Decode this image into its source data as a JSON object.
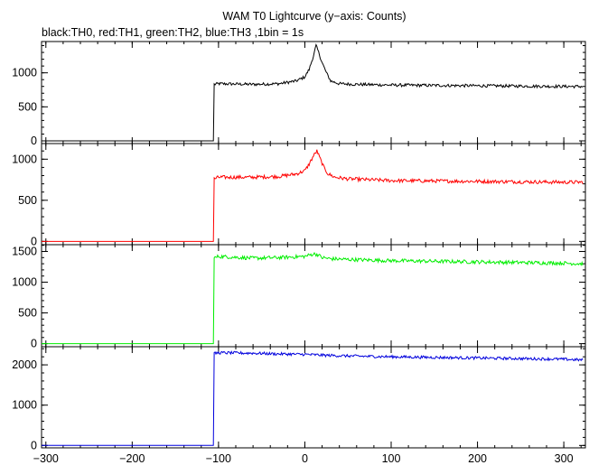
{
  "title": "WAM T0 Lightcurve (y−axis: Counts)",
  "subtitle": "black:TH0, red:TH1, green:TH2, blue:TH3 ,1bin = 1s",
  "chart_data": {
    "type": "line",
    "title": "WAM T0 Lightcurve (y−axis: Counts)",
    "subtitle": "black:TH0, red:TH1, green:TH2, blue:TH3 ,1bin = 1s",
    "xlim": [
      -305,
      325
    ],
    "x_ticks": [
      -300,
      -200,
      -100,
      0,
      100,
      200,
      300
    ],
    "x_tick_labels": [
      "−300",
      "−200",
      "−100",
      "0",
      "100",
      "200",
      "300"
    ],
    "step_time": -105,
    "panels": [
      {
        "name": "TH0",
        "color": "#000000",
        "ylim": [
          -40,
          1460
        ],
        "y_ticks": [
          0,
          500,
          1000
        ],
        "y_tick_labels": [
          "0",
          "500",
          "1000"
        ],
        "x": [
          -305,
          -105.5,
          -105,
          -100,
          -60,
          -30,
          -10,
          0,
          5,
          10,
          13,
          16,
          20,
          25,
          30,
          40,
          60,
          100,
          200,
          300,
          322
        ],
        "y": [
          0,
          0,
          830,
          840,
          830,
          840,
          880,
          940,
          1050,
          1250,
          1400,
          1300,
          1150,
          1000,
          880,
          840,
          830,
          820,
          810,
          800,
          800
        ],
        "noise": 22
      },
      {
        "name": "TH1",
        "color": "#ff0000",
        "ylim": [
          -40,
          1190
        ],
        "y_ticks": [
          0,
          500,
          1000
        ],
        "y_tick_labels": [
          "0",
          "500",
          "1000"
        ],
        "x": [
          -305,
          -105.5,
          -105,
          -100,
          -60,
          -30,
          -10,
          0,
          5,
          10,
          14,
          18,
          22,
          27,
          35,
          50,
          100,
          200,
          300,
          322
        ],
        "y": [
          0,
          0,
          760,
          780,
          780,
          790,
          820,
          860,
          940,
          1040,
          1100,
          1000,
          900,
          820,
          780,
          760,
          740,
          730,
          720,
          720
        ],
        "noise": 22
      },
      {
        "name": "TH2",
        "color": "#00ee00",
        "ylim": [
          -50,
          1610
        ],
        "y_ticks": [
          0,
          500,
          1000,
          1500
        ],
        "y_tick_labels": [
          "0",
          "500",
          "1000",
          "1500"
        ],
        "x": [
          -305,
          -105.5,
          -105,
          -100,
          -60,
          -30,
          0,
          10,
          15,
          20,
          30,
          50,
          100,
          200,
          300,
          322
        ],
        "y": [
          0,
          0,
          1390,
          1420,
          1390,
          1400,
          1420,
          1460,
          1450,
          1400,
          1380,
          1370,
          1350,
          1330,
          1310,
          1300
        ],
        "noise": 30
      },
      {
        "name": "TH3",
        "color": "#0000dd",
        "ylim": [
          -60,
          2450
        ],
        "y_ticks": [
          0,
          1000,
          2000
        ],
        "y_tick_labels": [
          "0",
          "1000",
          "2000"
        ],
        "x": [
          -305,
          -105.5,
          -105,
          -100,
          -60,
          -30,
          0,
          20,
          50,
          100,
          200,
          300,
          322
        ],
        "y": [
          0,
          0,
          2280,
          2300,
          2290,
          2270,
          2260,
          2240,
          2220,
          2200,
          2170,
          2140,
          2120
        ],
        "noise": 35
      }
    ]
  }
}
